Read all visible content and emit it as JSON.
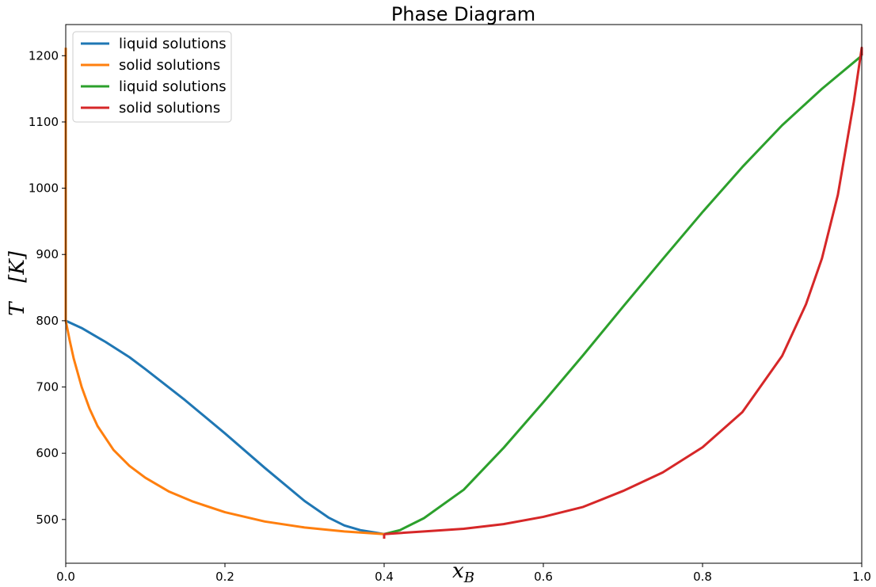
{
  "chart_data": {
    "type": "line",
    "title": "Phase Diagram",
    "xlabel": "x",
    "xlabel_sub": "B",
    "ylabel": "T   [K]",
    "xlim": [
      0,
      1
    ],
    "ylim": [
      434,
      1247
    ],
    "xticks": [
      0.0,
      0.2,
      0.4,
      0.6,
      0.8,
      1.0
    ],
    "xtick_labels": [
      "0.0",
      "0.2",
      "0.4",
      "0.6",
      "0.8",
      "1.0"
    ],
    "yticks": [
      500,
      600,
      700,
      800,
      900,
      1000,
      1100,
      1200
    ],
    "ytick_labels": [
      "500",
      "600",
      "700",
      "800",
      "900",
      "1000",
      "1100",
      "1200"
    ],
    "grid": false,
    "legend_position": "top-left",
    "series": [
      {
        "name": "liquid solutions",
        "color": "#1f77b4",
        "x": [
          0.0,
          0.02,
          0.05,
          0.08,
          0.1,
          0.15,
          0.2,
          0.25,
          0.3,
          0.33,
          0.35,
          0.37,
          0.39,
          0.4
        ],
        "y": [
          800,
          789,
          768,
          745,
          727,
          680,
          630,
          578,
          528,
          503,
          491,
          484,
          480,
          478
        ]
      },
      {
        "name": "solid solutions",
        "color": "#ff7f0e",
        "x": [
          0.0,
          0.0,
          0.0,
          0.005,
          0.01,
          0.02,
          0.03,
          0.04,
          0.06,
          0.08,
          0.1,
          0.13,
          0.16,
          0.2,
          0.25,
          0.3,
          0.35,
          0.4
        ],
        "y": [
          1212,
          800,
          800,
          770,
          743,
          700,
          667,
          641,
          605,
          581,
          563,
          542,
          527,
          511,
          497,
          488,
          482,
          478
        ]
      },
      {
        "name": "liquid solutions",
        "color": "#2ca02c",
        "x": [
          0.4,
          0.42,
          0.45,
          0.5,
          0.55,
          0.6,
          0.65,
          0.7,
          0.75,
          0.8,
          0.85,
          0.9,
          0.95,
          1.0
        ],
        "y": [
          478,
          484,
          502,
          545,
          608,
          677,
          748,
          821,
          893,
          964,
          1032,
          1095,
          1150,
          1200
        ]
      },
      {
        "name": "solid solutions",
        "color": "#d62728",
        "x": [
          0.4,
          0.45,
          0.5,
          0.55,
          0.6,
          0.65,
          0.7,
          0.75,
          0.8,
          0.85,
          0.9,
          0.93,
          0.95,
          0.97,
          0.99,
          1.0,
          1.0
        ],
        "y": [
          478,
          482,
          486,
          493,
          504,
          519,
          543,
          571,
          609,
          662,
          747,
          825,
          894,
          990,
          1130,
          1212,
          1200
        ]
      }
    ],
    "marker": {
      "x": 0.4,
      "y_from": 471,
      "y_to": 478,
      "color": "#d62728"
    }
  }
}
